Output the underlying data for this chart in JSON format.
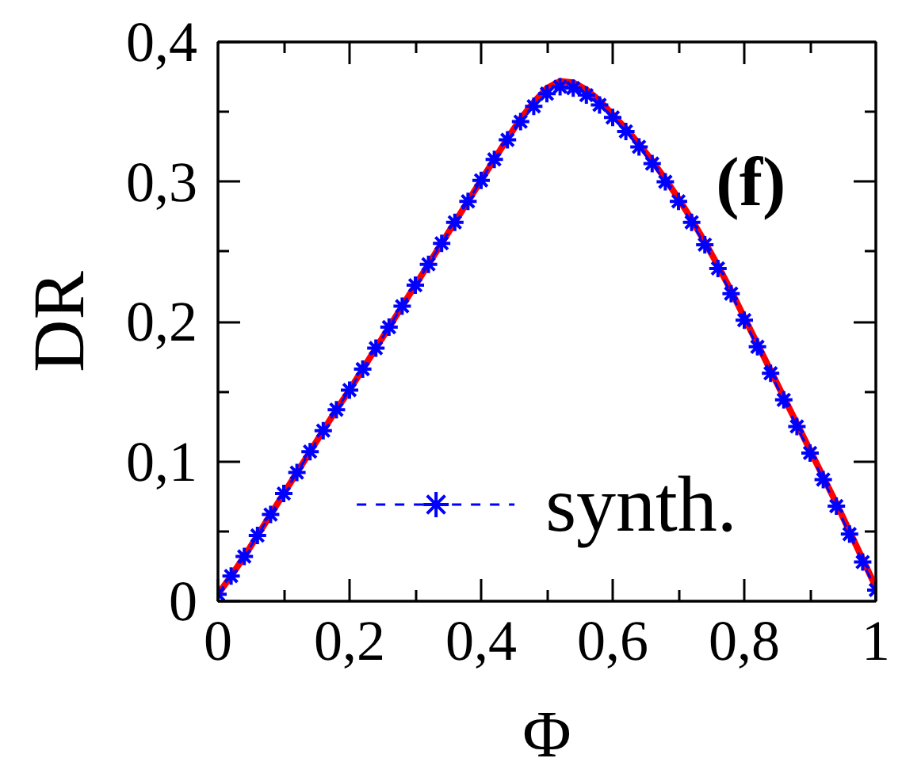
{
  "chart_data": {
    "type": "line",
    "xlabel": "Φ",
    "ylabel": "DR",
    "annotations": [
      "(f)"
    ],
    "x": [
      0,
      0.02,
      0.04,
      0.06,
      0.08,
      0.1,
      0.12,
      0.14,
      0.16,
      0.18,
      0.2,
      0.22,
      0.24,
      0.26,
      0.28,
      0.3,
      0.32,
      0.34,
      0.36,
      0.38,
      0.4,
      0.42,
      0.44,
      0.46,
      0.48,
      0.5,
      0.52,
      0.54,
      0.56,
      0.58,
      0.6,
      0.62,
      0.64,
      0.66,
      0.68,
      0.7,
      0.72,
      0.74,
      0.76,
      0.78,
      0.8,
      0.82,
      0.84,
      0.86,
      0.88,
      0.9,
      0.92,
      0.94,
      0.96,
      0.98,
      1
    ],
    "series": [
      {
        "color": "#ff0000",
        "values": [
          0.005,
          0.018,
          0.032,
          0.047,
          0.062,
          0.077,
          0.092,
          0.107,
          0.122,
          0.137,
          0.151,
          0.166,
          0.181,
          0.196,
          0.211,
          0.226,
          0.241,
          0.256,
          0.271,
          0.286,
          0.301,
          0.316,
          0.331,
          0.345,
          0.357,
          0.367,
          0.372,
          0.371,
          0.366,
          0.358,
          0.348,
          0.338,
          0.327,
          0.315,
          0.302,
          0.288,
          0.273,
          0.257,
          0.24,
          0.222,
          0.203,
          0.184,
          0.165,
          0.146,
          0.127,
          0.108,
          0.089,
          0.07,
          0.05,
          0.03,
          0.01
        ]
      },
      {
        "name": "synth.",
        "color": "#0000ff",
        "marker": "cross",
        "line_style": "dashed",
        "values": [
          0.005,
          0.018,
          0.032,
          0.047,
          0.062,
          0.077,
          0.092,
          0.107,
          0.122,
          0.137,
          0.151,
          0.166,
          0.181,
          0.196,
          0.211,
          0.226,
          0.241,
          0.256,
          0.271,
          0.286,
          0.301,
          0.316,
          0.33,
          0.343,
          0.354,
          0.363,
          0.368,
          0.367,
          0.362,
          0.355,
          0.346,
          0.336,
          0.325,
          0.313,
          0.3,
          0.286,
          0.271,
          0.255,
          0.238,
          0.22,
          0.201,
          0.182,
          0.163,
          0.144,
          0.125,
          0.106,
          0.087,
          0.068,
          0.048,
          0.028,
          0.008
        ]
      }
    ],
    "xlim": [
      0,
      1
    ],
    "ylim": [
      0,
      0.4
    ],
    "xticks": [
      0,
      {
        "value": 0.1,
        "label": null
      },
      {
        "value": 0.2,
        "label": "0,2"
      },
      {
        "value": 0.3,
        "label": null
      },
      {
        "value": 0.4,
        "label": "0,4"
      },
      {
        "value": 0.5,
        "label": null
      },
      {
        "value": 0.6,
        "label": "0,6"
      },
      {
        "value": 0.7,
        "label": null
      },
      {
        "value": 0.8,
        "label": "0,8"
      },
      {
        "value": 0.9,
        "label": null
      },
      1
    ],
    "yticks": [
      0,
      {
        "value": 0.05,
        "label": null
      },
      {
        "value": 0.1,
        "label": "0,1"
      },
      {
        "value": 0.15,
        "label": null
      },
      {
        "value": 0.2,
        "label": "0,2"
      },
      {
        "value": 0.25,
        "label": null
      },
      {
        "value": 0.3,
        "label": "0,3"
      },
      {
        "value": 0.35,
        "label": null
      },
      {
        "value": 0.4,
        "label": "0,4"
      }
    ],
    "legend": "bottom"
  }
}
